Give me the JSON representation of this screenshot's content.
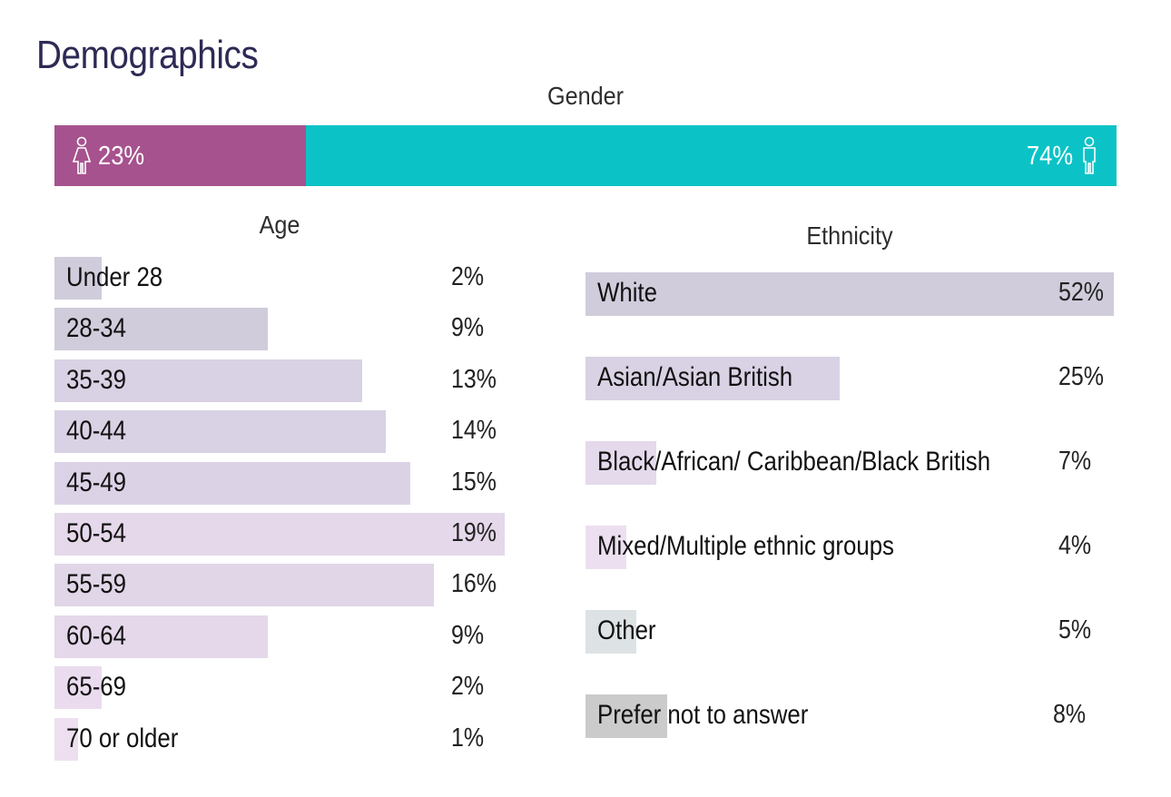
{
  "title": "Demographics",
  "colors": {
    "female": "#a6528e",
    "male": "#0bc3c6",
    "title": "#2d2a55"
  },
  "chart_data": [
    {
      "type": "bar",
      "orientation": "horizontal-stacked",
      "title": "Gender",
      "categories": [
        "Female",
        "Male"
      ],
      "values": [
        23,
        74
      ],
      "labels": [
        "23%",
        "74%"
      ],
      "icons": [
        "female-icon",
        "male-icon"
      ]
    },
    {
      "type": "bar",
      "orientation": "horizontal",
      "title": "Age",
      "categories": [
        "Under 28",
        "28-34",
        "35-39",
        "40-44",
        "45-49",
        "50-54",
        "55-59",
        "60-64",
        "65-69",
        "70 or older"
      ],
      "values": [
        2,
        9,
        13,
        14,
        15,
        19,
        16,
        9,
        2,
        1
      ],
      "labels": [
        "2%",
        "9%",
        "13%",
        "14%",
        "15%",
        "19%",
        "16%",
        "9%",
        "2%",
        "1%"
      ],
      "bar_colors": [
        "#d0ccdb",
        "#d0ccdb",
        "#d9d1e4",
        "#d9d1e4",
        "#dcd2e6",
        "#e4d8ea",
        "#e1d6e8",
        "#e4d8ea",
        "#eadcee",
        "#eddfef"
      ],
      "xlim": [
        0,
        19
      ]
    },
    {
      "type": "bar",
      "orientation": "horizontal",
      "title": "Ethnicity",
      "categories": [
        "White",
        "Asian/Asian British",
        "Black/African/ Caribbean/Black British",
        "Mixed/Multiple ethnic groups",
        "Other",
        "Prefer not to answer"
      ],
      "values": [
        52,
        25,
        7,
        4,
        5,
        8
      ],
      "labels": [
        "52%",
        "25%",
        "7%",
        "4%",
        "5%",
        "8%"
      ],
      "bar_colors": [
        "#d0ccdb",
        "#d9d1e4",
        "#e5d9ec",
        "#ecdff0",
        "#dde3e4",
        "#cbcbcb"
      ],
      "xlim": [
        0,
        52
      ]
    }
  ]
}
